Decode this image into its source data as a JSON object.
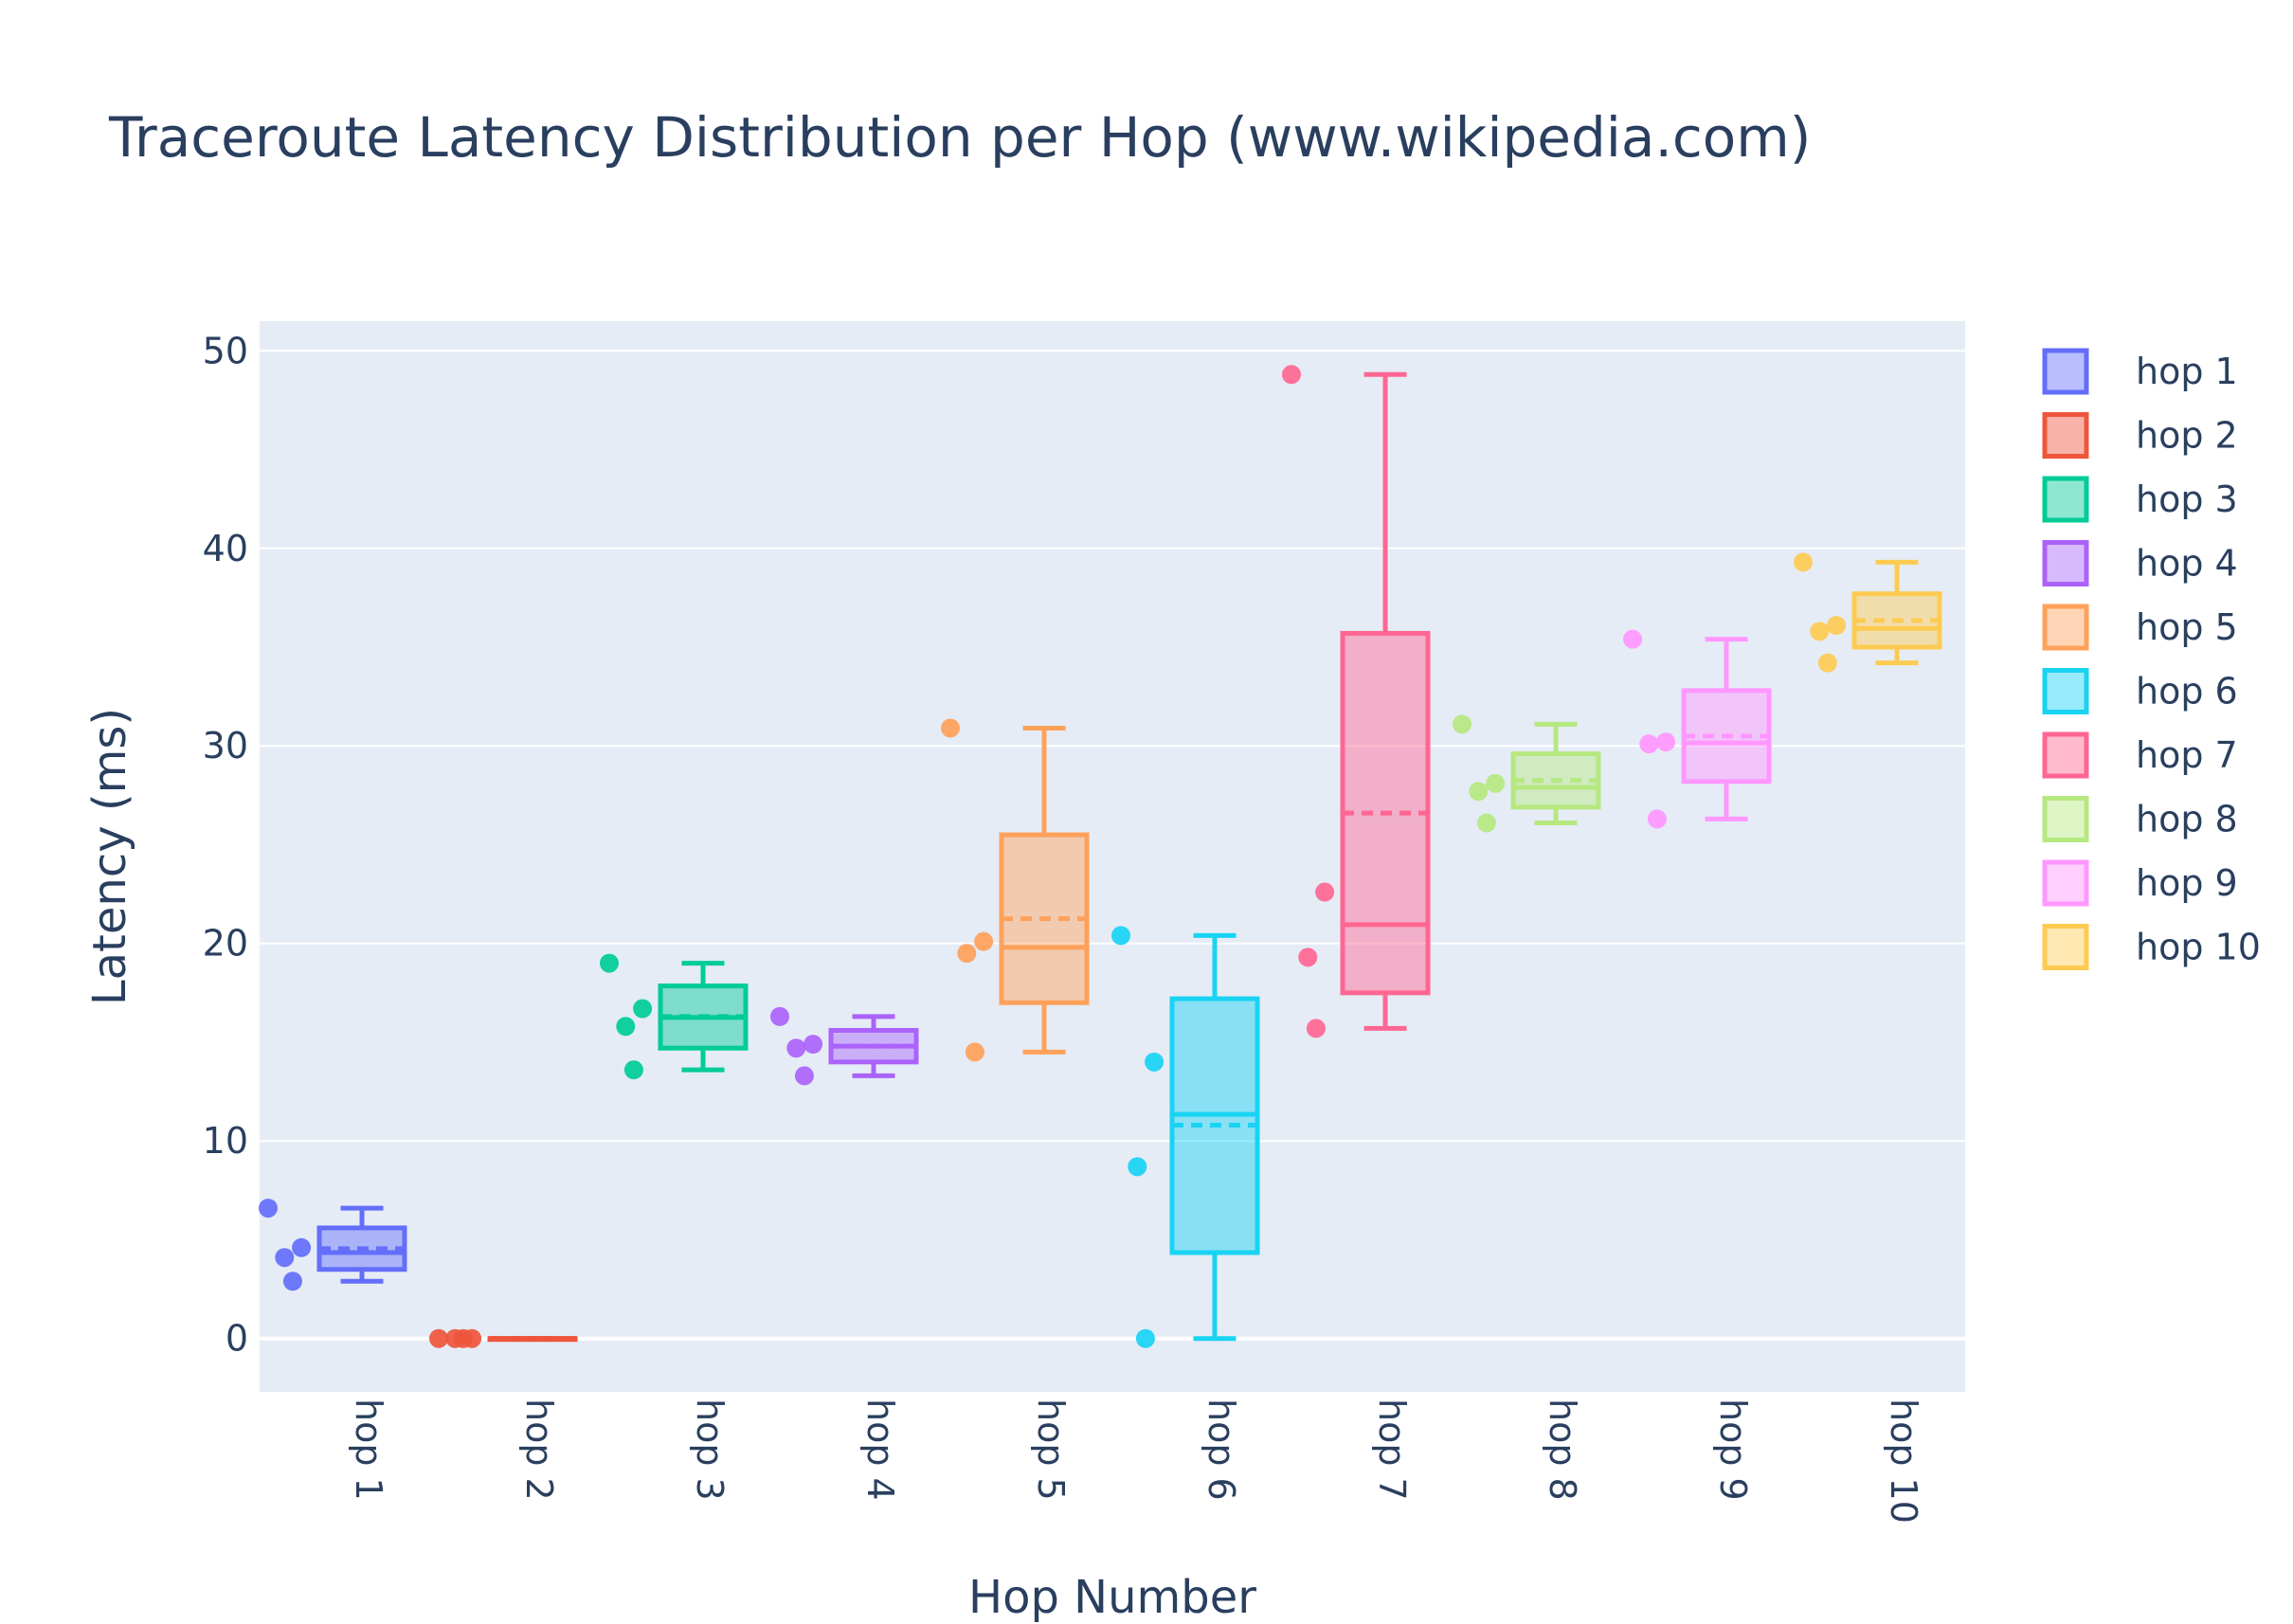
{
  "chart_data": {
    "type": "box",
    "title": "Traceroute Latency Distribution per Hop (www.wikipedia.com)",
    "xlabel": "Hop Number",
    "ylabel": "Latency (ms)",
    "ylim": [
      -2.7,
      51.5
    ],
    "yticks": [
      0,
      10,
      20,
      30,
      40,
      50
    ],
    "grid": true,
    "legend_position": "right",
    "boxpoints": "all",
    "categories": [
      "hop 1",
      "hop 2",
      "hop 3",
      "hop 4",
      "hop 5",
      "hop 6",
      "hop 7",
      "hop 8",
      "hop 9",
      "hop 10"
    ],
    "series": [
      {
        "name": "hop 1",
        "color": "#636efa",
        "points": [
          6.6,
          4.1,
          4.6,
          2.9
        ],
        "q1": 3.5,
        "median": 4.35,
        "q3": 5.6,
        "mean": 4.55,
        "whisker_low": 2.9,
        "whisker_high": 6.6
      },
      {
        "name": "hop 2",
        "color": "#EF553B",
        "points": [
          0,
          0,
          0,
          0
        ],
        "q1": 0,
        "median": 0,
        "q3": 0,
        "mean": 0,
        "whisker_low": 0,
        "whisker_high": 0
      },
      {
        "name": "hop 3",
        "color": "#00cc96",
        "points": [
          19.0,
          15.8,
          16.7,
          13.6
        ],
        "q1": 14.7,
        "median": 16.25,
        "q3": 17.85,
        "mean": 16.3,
        "whisker_low": 13.6,
        "whisker_high": 19.0
      },
      {
        "name": "hop 4",
        "color": "#ab63fa",
        "points": [
          16.3,
          14.7,
          14.9,
          13.3
        ],
        "q1": 14.0,
        "median": 14.8,
        "q3": 15.6,
        "mean": 14.8,
        "whisker_low": 13.3,
        "whisker_high": 16.3
      },
      {
        "name": "hop 5",
        "color": "#FFA15A",
        "points": [
          30.9,
          19.5,
          20.1,
          14.5
        ],
        "q1": 17.0,
        "median": 19.8,
        "q3": 25.5,
        "mean": 21.25,
        "whisker_low": 14.5,
        "whisker_high": 30.9
      },
      {
        "name": "hop 6",
        "color": "#19d3f3",
        "points": [
          20.4,
          8.7,
          14.0,
          0.0
        ],
        "q1": 4.35,
        "median": 11.35,
        "q3": 17.2,
        "mean": 10.8,
        "whisker_low": 0.0,
        "whisker_high": 20.4
      },
      {
        "name": "hop 7",
        "color": "#FF6692",
        "points": [
          48.8,
          19.3,
          22.6,
          15.7
        ],
        "q1": 17.5,
        "median": 20.95,
        "q3": 35.7,
        "mean": 26.6,
        "whisker_low": 15.7,
        "whisker_high": 48.8
      },
      {
        "name": "hop 8",
        "color": "#B6E880",
        "points": [
          31.1,
          27.7,
          28.1,
          26.1
        ],
        "q1": 26.9,
        "median": 27.9,
        "q3": 29.6,
        "mean": 28.25,
        "whisker_low": 26.1,
        "whisker_high": 31.1
      },
      {
        "name": "hop 9",
        "color": "#FF97FF",
        "points": [
          35.4,
          30.1,
          30.2,
          26.3
        ],
        "q1": 28.2,
        "median": 30.15,
        "q3": 32.8,
        "mean": 30.5,
        "whisker_low": 26.3,
        "whisker_high": 35.4
      },
      {
        "name": "hop 10",
        "color": "#FECB52",
        "points": [
          39.3,
          35.8,
          36.1,
          34.2
        ],
        "q1": 35.0,
        "median": 35.95,
        "q3": 37.7,
        "mean": 36.35,
        "whisker_low": 34.2,
        "whisker_high": 39.3
      }
    ]
  }
}
